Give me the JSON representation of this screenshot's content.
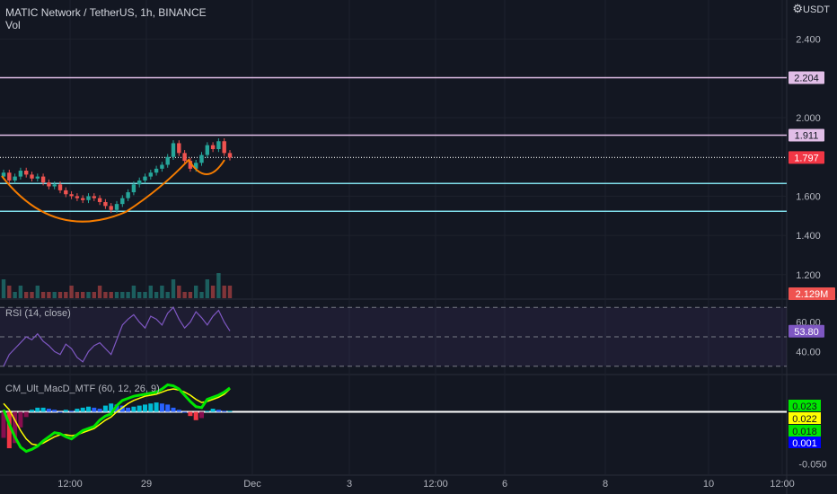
{
  "header": {
    "title": "MATIC Network / TetherUS, 1h, BINANCE",
    "volume_label": "Vol",
    "currency": "USDT"
  },
  "colors": {
    "background": "#131722",
    "up": "#26a69a",
    "down": "#ef5350",
    "resistance": "#e1bee7",
    "support": "#80deea",
    "pattern": "#f57c00",
    "rsi_line": "#7e57c2",
    "rsi_band": "#7e57c2",
    "macd_fast": "#00e600",
    "macd_slow": "#ffff00"
  },
  "chart_data": [
    {
      "type": "line",
      "pane": "price",
      "title": "MATIC Network / TetherUS, 1h, BINANCE",
      "y_ticks": [
        "2.400",
        "2.000",
        "1.600",
        "1.400",
        "1.200"
      ],
      "ylim": [
        1.08,
        2.6
      ],
      "x_ticks": [
        "12:00",
        "29",
        "Dec",
        "3",
        "12:00",
        "6",
        "8",
        "10",
        "12:00"
      ],
      "horizontal_levels": [
        {
          "label": "2.204",
          "value": 2.204,
          "role": "resistance"
        },
        {
          "label": "1.911",
          "value": 1.911,
          "role": "resistance"
        },
        {
          "label": "1.797",
          "value": 1.797,
          "role": "last-price"
        },
        {
          "value": 1.665,
          "role": "support"
        },
        {
          "value": 1.523,
          "role": "support"
        }
      ],
      "price_series": [
        1.72,
        1.68,
        1.7,
        1.73,
        1.71,
        1.69,
        1.7,
        1.67,
        1.65,
        1.66,
        1.63,
        1.61,
        1.6,
        1.59,
        1.58,
        1.6,
        1.59,
        1.57,
        1.55,
        1.53,
        1.56,
        1.59,
        1.62,
        1.66,
        1.68,
        1.7,
        1.72,
        1.74,
        1.76,
        1.8,
        1.87,
        1.82,
        1.78,
        1.74,
        1.77,
        1.81,
        1.86,
        1.84,
        1.88,
        1.82,
        1.797
      ]
    },
    {
      "type": "bar",
      "pane": "volume",
      "name": "Vol",
      "last_label": "2.129M",
      "values": [
        3,
        2,
        1,
        2,
        1,
        1,
        2,
        1,
        1,
        1,
        1,
        1,
        2,
        1,
        1,
        1,
        1,
        2,
        1,
        1,
        1,
        1,
        1,
        2,
        1,
        1,
        2,
        1,
        2,
        1,
        3,
        2,
        1,
        1,
        2,
        1,
        3,
        2,
        4,
        2,
        2
      ]
    },
    {
      "type": "line",
      "pane": "rsi",
      "name": "RSI (14, close)",
      "y_ticks": [
        "60.00",
        "40.00"
      ],
      "ylim": [
        25,
        75
      ],
      "bands": [
        70,
        50,
        30
      ],
      "current": "53.80",
      "values": [
        30,
        38,
        42,
        46,
        50,
        48,
        52,
        47,
        44,
        40,
        38,
        45,
        42,
        36,
        33,
        40,
        44,
        46,
        42,
        38,
        48,
        58,
        62,
        65,
        60,
        56,
        64,
        62,
        58,
        66,
        70,
        62,
        56,
        60,
        67,
        63,
        58,
        64,
        68,
        60,
        54
      ]
    },
    {
      "type": "bar",
      "pane": "macd",
      "name": "CM_Ult_MacD_MTF (60, 12, 26, 9)",
      "y_ticks": [
        "-0.050"
      ],
      "ylim": [
        -0.06,
        0.035
      ],
      "value_labels": [
        "0.023",
        "0.022",
        "0.018",
        "0.001"
      ],
      "histogram": [
        -0.025,
        -0.035,
        -0.03,
        -0.015,
        -0.005,
        0.002,
        0.004,
        0.004,
        0.003,
        0.002,
        0.0,
        0.002,
        0.001,
        0.003,
        0.004,
        0.005,
        0.004,
        0.003,
        0.006,
        0.008,
        0.007,
        0.006,
        0.004,
        0.005,
        0.006,
        0.007,
        0.008,
        0.009,
        0.008,
        0.007,
        0.004,
        0.002,
        0.0,
        -0.004,
        -0.008,
        -0.006,
        0.001,
        0.003,
        0.002,
        0.001,
        0.001
      ],
      "macd": [
        0.002,
        -0.012,
        -0.024,
        -0.034,
        -0.038,
        -0.036,
        -0.033,
        -0.028,
        -0.024,
        -0.02,
        -0.021,
        -0.024,
        -0.026,
        -0.022,
        -0.018,
        -0.016,
        -0.014,
        -0.008,
        -0.004,
        -0.002,
        0.006,
        0.011,
        0.013,
        0.015,
        0.016,
        0.017,
        0.018,
        0.019,
        0.022,
        0.026,
        0.025,
        0.022,
        0.016,
        0.01,
        0.005,
        0.004,
        0.012,
        0.014,
        0.016,
        0.019,
        0.023
      ],
      "signal": [
        0.008,
        0.002,
        -0.008,
        -0.018,
        -0.026,
        -0.031,
        -0.032,
        -0.03,
        -0.027,
        -0.024,
        -0.022,
        -0.022,
        -0.023,
        -0.022,
        -0.02,
        -0.018,
        -0.016,
        -0.012,
        -0.008,
        -0.005,
        0.0,
        0.004,
        0.008,
        0.011,
        0.013,
        0.015,
        0.016,
        0.017,
        0.019,
        0.021,
        0.022,
        0.021,
        0.019,
        0.016,
        0.012,
        0.009,
        0.01,
        0.012,
        0.014,
        0.017,
        0.022
      ]
    }
  ]
}
